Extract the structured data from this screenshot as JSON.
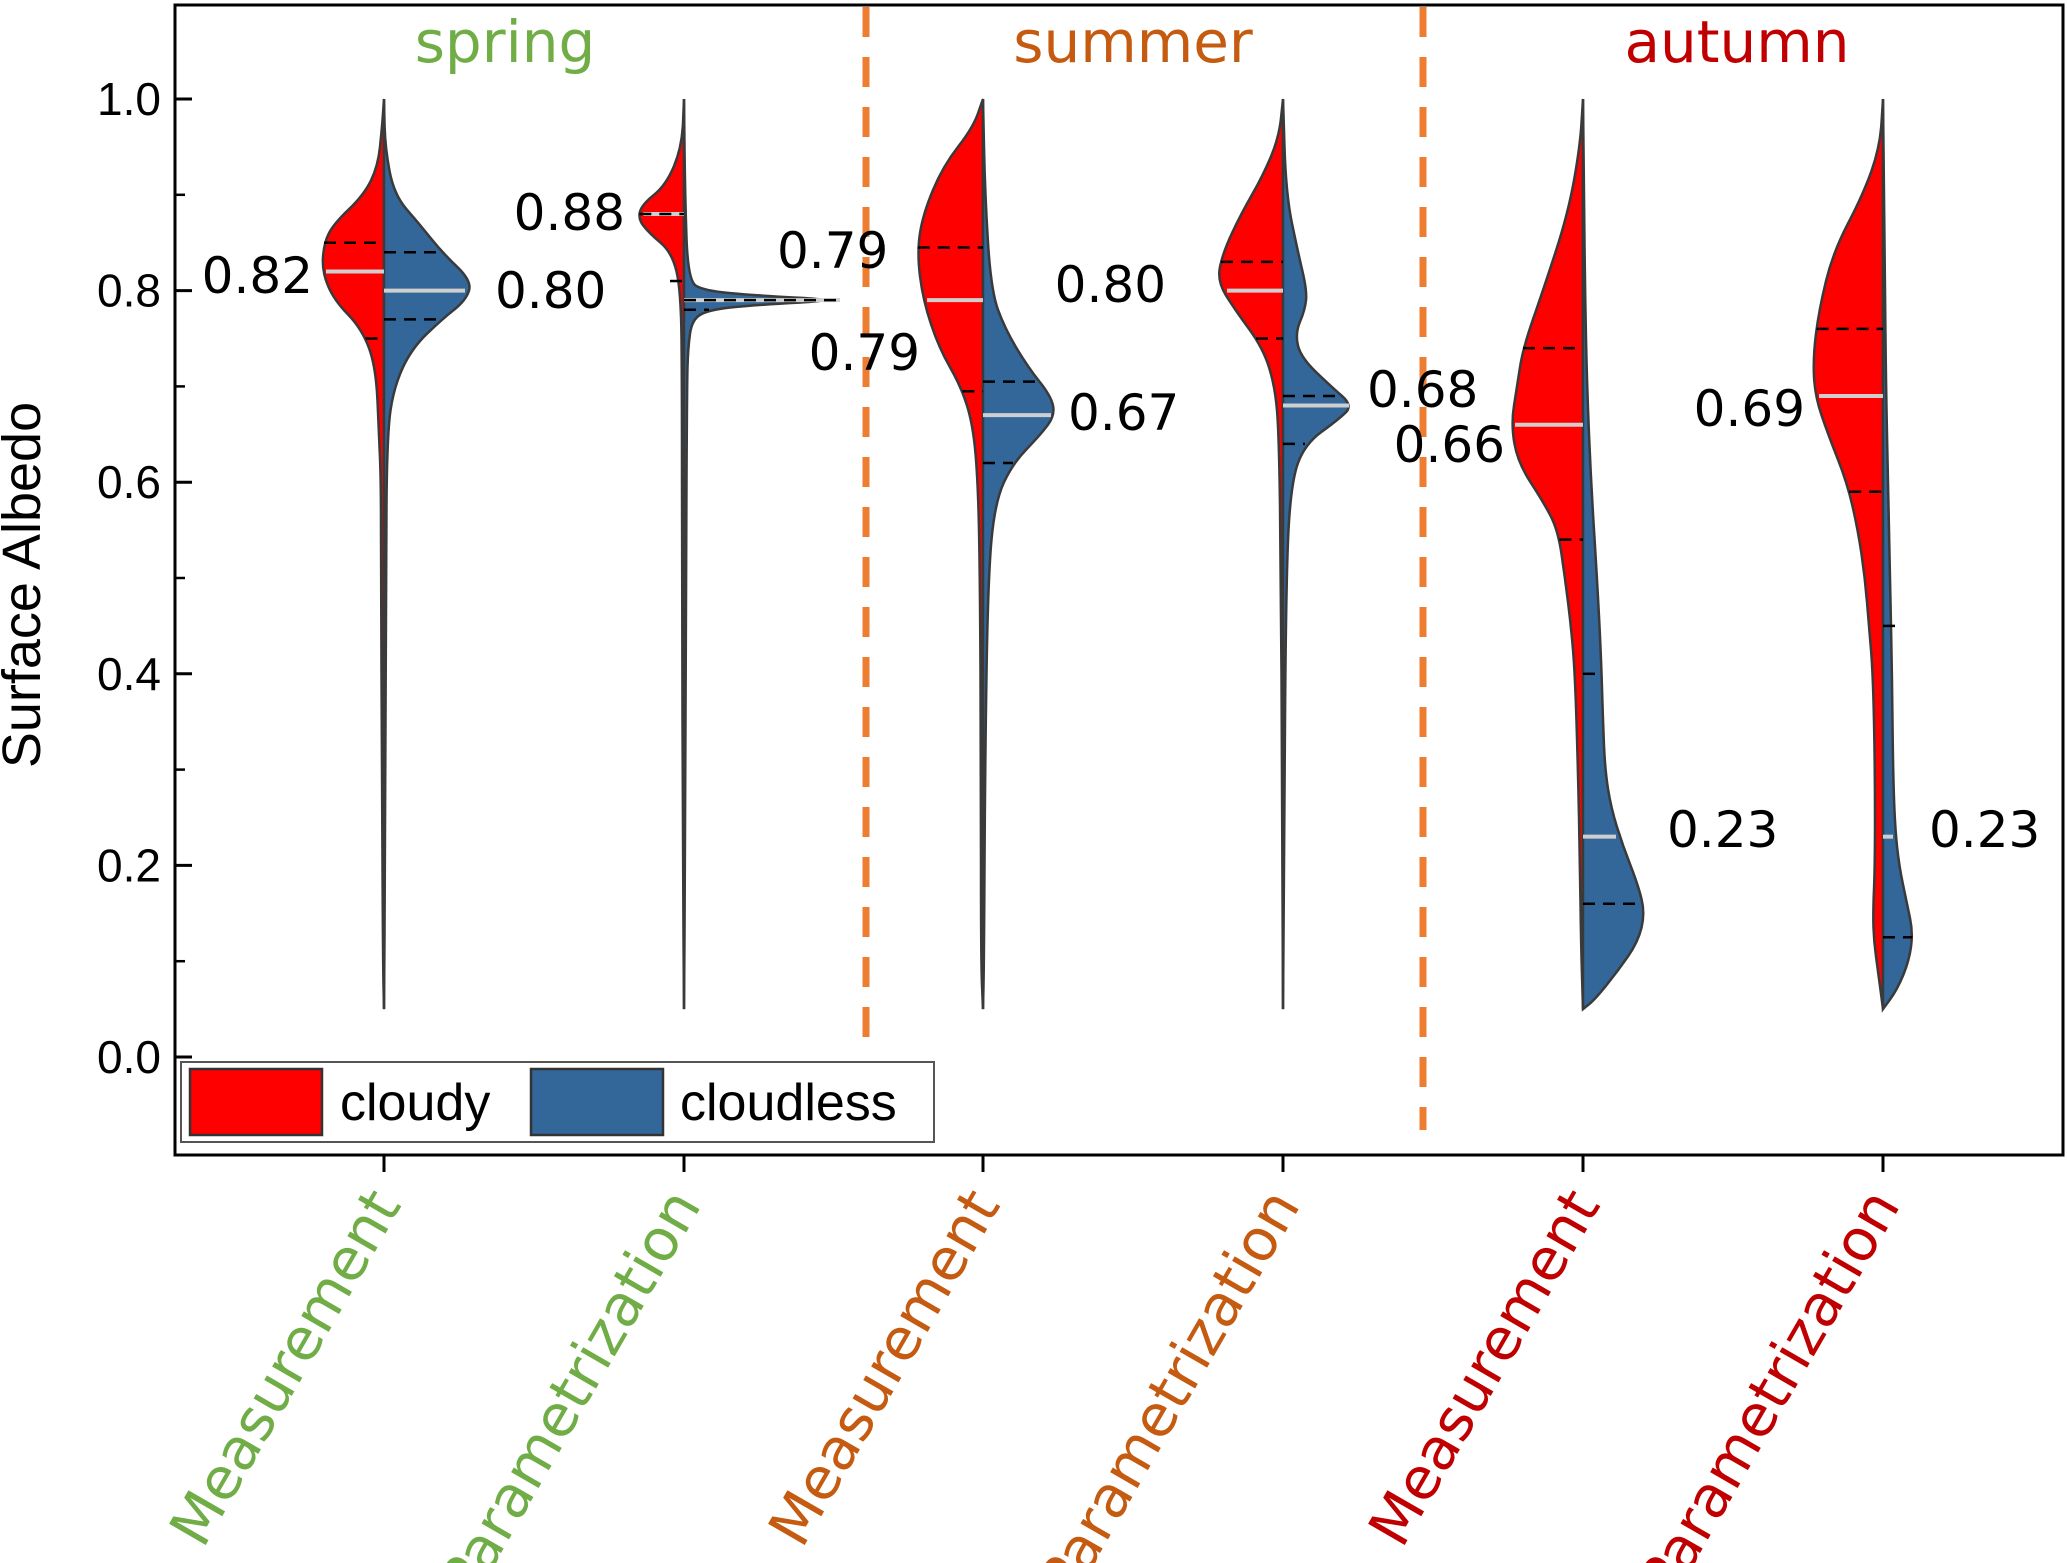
{
  "chart_data": {
    "type": "violin",
    "ylabel": "Surface Albedo",
    "ylim": [
      -0.1,
      1.1
    ],
    "yticks": [
      "0.0",
      "0.2",
      "0.4",
      "0.6",
      "0.8",
      "1.0"
    ],
    "grid": false,
    "seasons": [
      {
        "name": "spring",
        "color": "#70ad47"
      },
      {
        "name": "summer",
        "color": "#c55a11"
      },
      {
        "name": "autumn",
        "color": "#c00000"
      }
    ],
    "categories": [
      {
        "label": "Measurement",
        "season": "spring"
      },
      {
        "label": "Parametrization",
        "season": "spring"
      },
      {
        "label": "Measurement",
        "season": "summer"
      },
      {
        "label": "Parametrization",
        "season": "summer"
      },
      {
        "label": "Measurement",
        "season": "autumn"
      },
      {
        "label": "Parametrization",
        "season": "autumn"
      }
    ],
    "series": [
      {
        "name": "cloudy",
        "color": "#ff0000",
        "side": "left",
        "medians": [
          0.82,
          0.88,
          0.79,
          0.8,
          0.66,
          0.69
        ],
        "median_labels": [
          "0.82",
          "0.88",
          "0.79",
          "0.80",
          "0.66",
          "0.69"
        ],
        "quartiles": [
          [
            0.75,
            0.85
          ],
          [
            0.81,
            0.88
          ],
          [
            0.695,
            0.845
          ],
          [
            0.75,
            0.83
          ],
          [
            0.54,
            0.74
          ],
          [
            0.59,
            0.76
          ]
        ]
      },
      {
        "name": "cloudless",
        "color": "#336699",
        "side": "right",
        "medians": [
          0.8,
          0.79,
          0.67,
          0.68,
          0.23,
          0.23
        ],
        "median_labels": [
          "0.80",
          "0.79",
          "0.67",
          "0.68",
          "0.23",
          "0.23"
        ],
        "quartiles": [
          [
            0.77,
            0.84
          ],
          [
            0.78,
            0.79
          ],
          [
            0.62,
            0.705
          ],
          [
            0.64,
            0.69
          ],
          [
            0.16,
            0.4
          ],
          [
            0.125,
            0.45
          ]
        ]
      }
    ],
    "legend": {
      "position": "bottom-left",
      "entries": [
        "cloudy",
        "cloudless"
      ]
    },
    "separator_color": "#ed7d31"
  }
}
